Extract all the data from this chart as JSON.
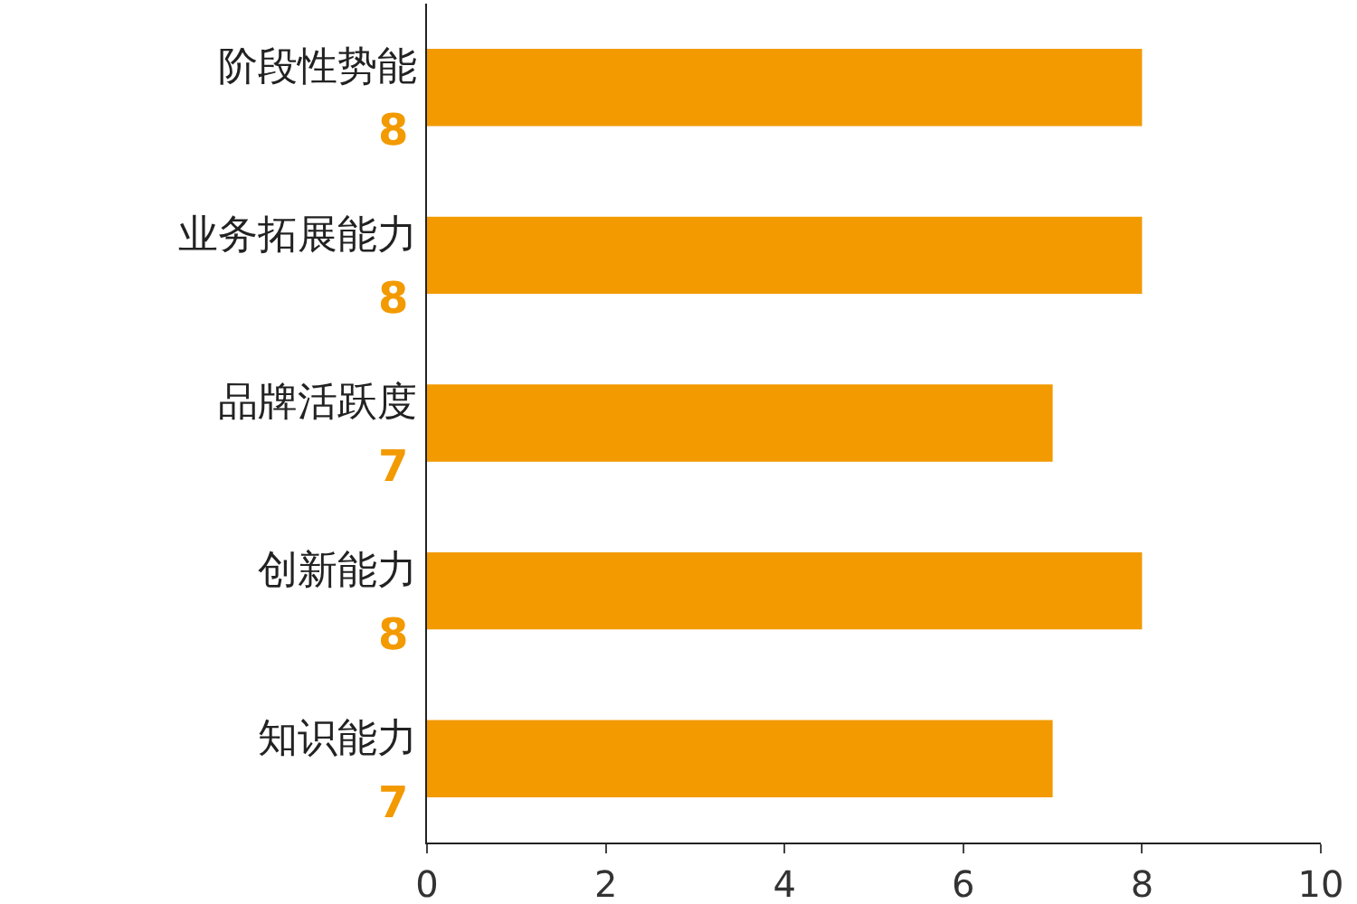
{
  "chart_data": {
    "type": "bar",
    "orientation": "horizontal",
    "categories": [
      "阶段性势能",
      "业务拓展能力",
      "品牌活跃度",
      "创新能力",
      "知识能力"
    ],
    "values": [
      8,
      8,
      7,
      8,
      7
    ],
    "color": "#f29a00",
    "xlim": [
      0,
      10
    ],
    "xticks": [
      0,
      2,
      4,
      6,
      8,
      10
    ],
    "grid": false,
    "legend": false,
    "data_labels": true
  }
}
